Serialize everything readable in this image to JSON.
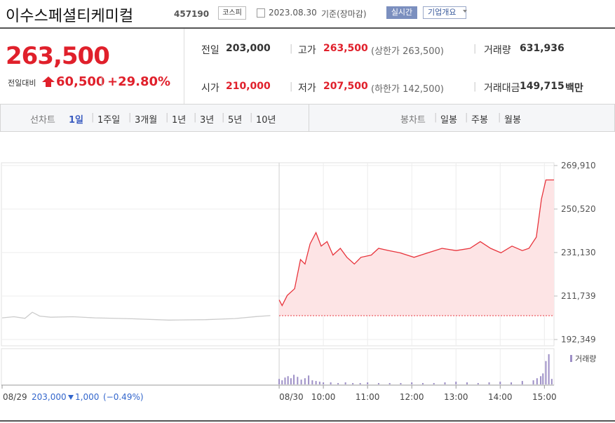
{
  "header": {
    "title": "이수스페셜티케미컬",
    "code": "457190",
    "market": "코스피",
    "date": "2023.08.30",
    "basis": "기준(장마감)",
    "realtime_button": "실시간",
    "company_button": "기업개요"
  },
  "quote": {
    "price": "263,500",
    "change_label": "전일대비",
    "change": "60,500",
    "change_pct": "+29.80%"
  },
  "stats": [
    {
      "label": "전일",
      "value": "203,000"
    },
    {
      "label": "고가",
      "value": "263,500",
      "note": "(상한가 263,500)"
    },
    {
      "label": "거래량",
      "value": "631,936"
    },
    {
      "label": "시가",
      "value": "210,000"
    },
    {
      "label": "저가",
      "value": "207,500",
      "note": "(하한가 142,500)"
    },
    {
      "label": "거래대금",
      "value": "149,715",
      "unit": "백만"
    }
  ],
  "tabs": {
    "line_label": "선차트",
    "line_periods": [
      "1일",
      "1주일",
      "3개월",
      "1년",
      "3년",
      "5년",
      "10년"
    ],
    "candle_label": "봉차트",
    "candle_periods": [
      "일봉",
      "주봉",
      "월봉"
    ]
  },
  "footer": {
    "prev_close": "203,000",
    "change": "1,000",
    "change_pct": "(−0.49%)"
  },
  "chart_data": {
    "type": "line",
    "ylim": [
      192349,
      269910
    ],
    "yticks": [
      {
        "value": 269910,
        "label": "269,910"
      },
      {
        "value": 250520,
        "label": "250,520"
      },
      {
        "value": 231130,
        "label": "231,130"
      },
      {
        "value": 211739,
        "label": "211,739"
      },
      {
        "value": 192349,
        "label": "192,349"
      }
    ],
    "xlim": [
      -376,
      373
    ],
    "xticks": [
      {
        "value": -376,
        "label": "08/29"
      },
      {
        "value": 0,
        "label": "08/30"
      },
      {
        "value": 60,
        "label": "10:00"
      },
      {
        "value": 120,
        "label": "11:00"
      },
      {
        "value": 180,
        "label": "12:00"
      },
      {
        "value": 240,
        "label": "13:00"
      },
      {
        "value": 300,
        "label": "14:00"
      },
      {
        "value": 360,
        "label": "15:00"
      }
    ],
    "grid": true,
    "previous_close": 203000,
    "series": [
      {
        "color": "#e8343c",
        "fill": "#fde4e5",
        "x": [
          0,
          4,
          11,
          21,
          29,
          35,
          42,
          50,
          57,
          65,
          73,
          83,
          92,
          102,
          111,
          125,
          135,
          149,
          164,
          183,
          202,
          221,
          240,
          259,
          273,
          287,
          301,
          316,
          330,
          339,
          349,
          356,
          362,
          373
        ],
        "values": [
          210000,
          207500,
          212000,
          215000,
          228000,
          226000,
          235000,
          240000,
          234000,
          236000,
          230000,
          233000,
          229000,
          226000,
          229000,
          230000,
          233000,
          232000,
          231000,
          229000,
          231000,
          233000,
          232000,
          233000,
          236000,
          233000,
          231000,
          234000,
          232000,
          233000,
          238000,
          255000,
          263500,
          263500
        ]
      },
      {
        "color": "#cccccc",
        "x": [
          -376,
          -360,
          -345,
          -335,
          -325,
          -310,
          -280,
          -250,
          -200,
          -150,
          -100,
          -60,
          -30,
          -12
        ],
        "values": [
          202000,
          202500,
          201800,
          204500,
          202800,
          202300,
          202500,
          202000,
          201600,
          201000,
          201200,
          201700,
          202600,
          203000
        ]
      }
    ],
    "volume": {
      "name": "거래량",
      "color": "#9d8fc6",
      "ylim": [
        0,
        50000
      ],
      "x": [
        0,
        4,
        8,
        12,
        16,
        20,
        25,
        30,
        35,
        40,
        45,
        50,
        55,
        60,
        70,
        80,
        90,
        100,
        110,
        120,
        135,
        150,
        165,
        180,
        195,
        210,
        225,
        240,
        255,
        270,
        285,
        300,
        315,
        330,
        345,
        350,
        355,
        358,
        362,
        366,
        370
      ],
      "values": [
        8000,
        6000,
        10000,
        12000,
        9000,
        14000,
        11000,
        7000,
        9000,
        13000,
        6000,
        5000,
        4000,
        3000,
        3000,
        2000,
        3000,
        2000,
        2000,
        3000,
        2000,
        2000,
        2000,
        3000,
        2000,
        2000,
        3000,
        4000,
        3000,
        2000,
        3000,
        4000,
        3000,
        5000,
        6000,
        9000,
        12000,
        16000,
        34000,
        44000,
        8000
      ]
    }
  }
}
